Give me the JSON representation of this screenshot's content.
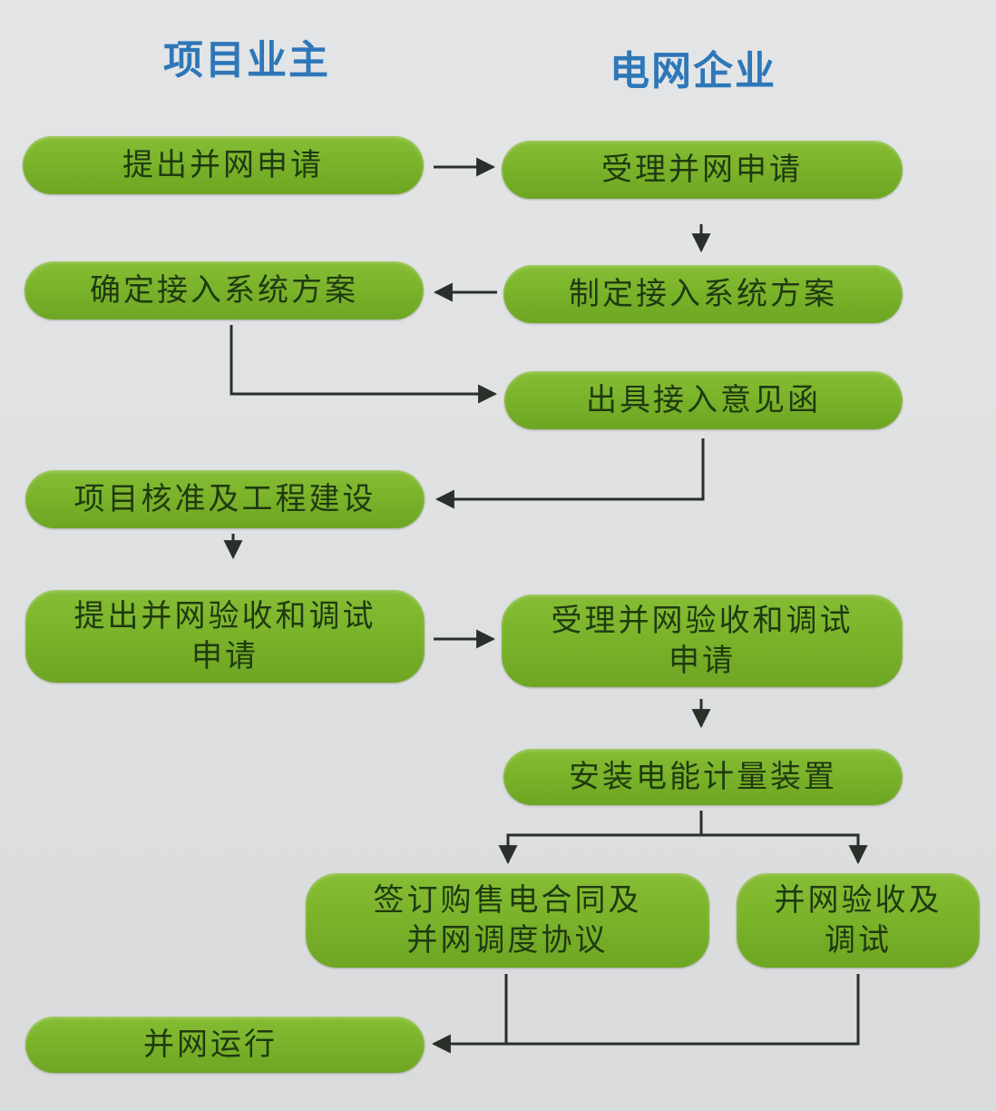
{
  "headers": {
    "owner": "项目业主",
    "grid": "电网企业"
  },
  "steps": {
    "submit_application": "提出并网申请",
    "accept_application": "受理并网申请",
    "make_plan": "制定接入系统方案",
    "confirm_plan": "确定接入系统方案",
    "issue_opinion_letter": "出具接入意见函",
    "approval_construction": "项目核准及工程建设",
    "submit_acceptance": "提出并网验收和调试申请",
    "accept_acceptance": "受理并网验收和调试申请",
    "install_meter": "安装电能计量装置",
    "sign_contract": "签订购售电合同及并网调度协议",
    "acceptance_debug": "并网验收及调试",
    "grid_operation": "并网运行"
  },
  "colors": {
    "header_text": "#2e77b8",
    "box_fill": "#7ab22a",
    "box_text": "#1f3a10",
    "connector": "#2a2f2a"
  }
}
